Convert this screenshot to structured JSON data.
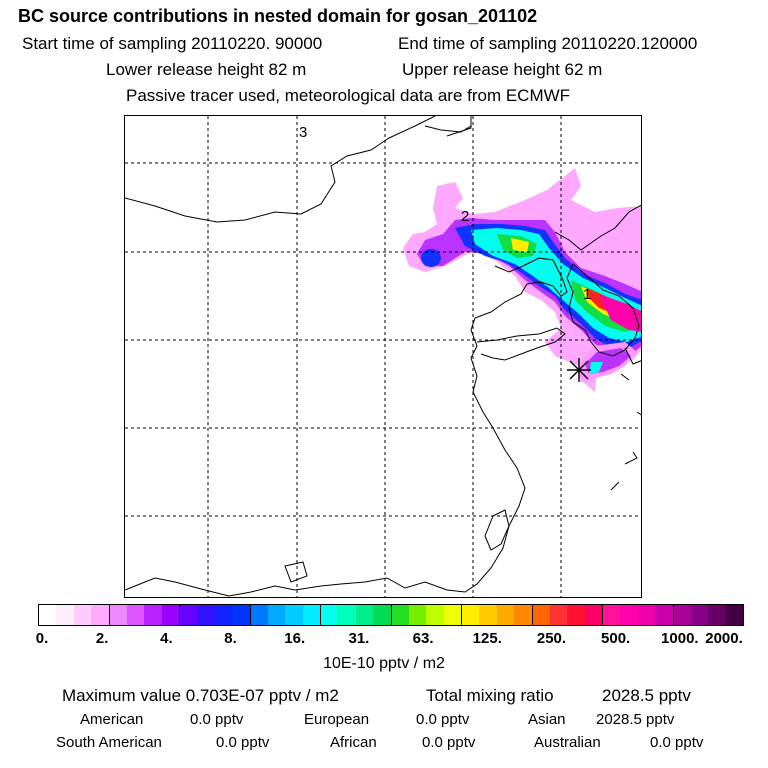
{
  "header": {
    "title": "BC  source contributions in nested domain for gosan_201102",
    "start": "Start time of sampling 20110220. 90000",
    "end": "End time of sampling 20110220.120000",
    "lower": "Lower release height   82 m",
    "upper": "Upper release height   62 m",
    "passive": "Passive tracer used, meteorological data are from ECMWF"
  },
  "map": {
    "labels": [
      "3",
      "2",
      "1"
    ],
    "receptor": "gosan",
    "plume_colors": {
      "light": "#ff99ff",
      "violet": "#bb33ff",
      "blue": "#1133ff",
      "cyan": "#00ffee",
      "green": "#11dd44",
      "yellow": "#ffee00",
      "red": "#ff2222",
      "magenta": "#ff00aa"
    }
  },
  "colorbar": {
    "ticks": [
      "0.",
      "2.",
      "4.",
      "8.",
      "16.",
      "31.",
      "63.",
      "125.",
      "250.",
      "500.",
      "1000.",
      "2000."
    ],
    "colors": [
      "#ffffff",
      "#ffeeff",
      "#ffccff",
      "#ffaaff",
      "#ee88ff",
      "#dd55ff",
      "#bb22ff",
      "#9900ff",
      "#6600ff",
      "#3311ff",
      "#1122ff",
      "#0033ff",
      "#0077ff",
      "#00aaff",
      "#00ccff",
      "#00eeff",
      "#00ffee",
      "#00ffbb",
      "#00ee88",
      "#00dd55",
      "#22dd22",
      "#77ee00",
      "#bbff00",
      "#eeff00",
      "#ffee00",
      "#ffcc00",
      "#ffaa00",
      "#ff8800",
      "#ff6600",
      "#ff3333",
      "#ff1133",
      "#ff0066",
      "#ff1199",
      "#ff00aa",
      "#ee00aa",
      "#cc00aa",
      "#aa0099",
      "#880088",
      "#660066",
      "#440044"
    ],
    "unit": "10E-10 pptv / m2"
  },
  "stats": {
    "max": "Maximum value  0.703E-07 pptv / m2",
    "total_label": "Total mixing ratio",
    "total_value": "2028.5 pptv",
    "american_label": "American",
    "american_value": "0.0 pptv",
    "european_label": "European",
    "european_value": "0.0 pptv",
    "asian_label": "Asian",
    "asian_value": "2028.5 pptv",
    "south_american_label": "South American",
    "south_american_value": "0.0 pptv",
    "african_label": "African",
    "african_value": "0.0 pptv",
    "australian_label": "Australian",
    "australian_value": "0.0 pptv"
  }
}
